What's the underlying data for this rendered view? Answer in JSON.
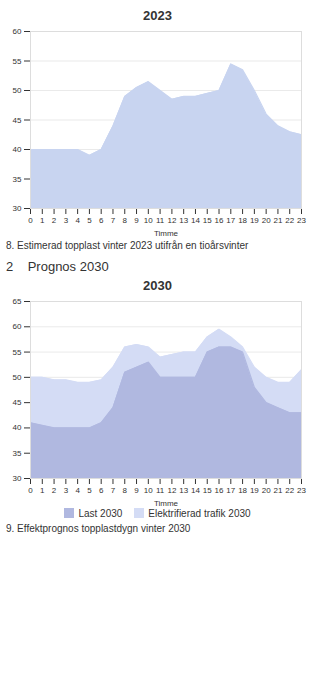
{
  "chart_data": [
    {
      "type": "area",
      "title": "2023",
      "x_label": "Timme",
      "x": [
        0,
        1,
        2,
        3,
        4,
        5,
        6,
        7,
        8,
        9,
        10,
        11,
        12,
        13,
        14,
        15,
        16,
        17,
        18,
        19,
        20,
        21,
        22,
        23
      ],
      "series": [
        {
          "name": null,
          "color": "#c8d4f0",
          "values": [
            40,
            40,
            40,
            40,
            40,
            39,
            40,
            44,
            49,
            50.5,
            51.5,
            50,
            48.5,
            49,
            49,
            49.5,
            50,
            54.5,
            53.5,
            50,
            46,
            44,
            43,
            42.5
          ]
        }
      ],
      "xlim": [
        0,
        23
      ],
      "xticks": [
        0,
        1,
        2,
        3,
        4,
        5,
        6,
        7,
        8,
        9,
        10,
        11,
        12,
        13,
        14,
        15,
        16,
        17,
        18,
        19,
        20,
        21,
        22,
        23
      ],
      "ylim": [
        30,
        60
      ],
      "yticks": [
        30,
        35,
        40,
        45,
        50,
        55,
        60
      ],
      "grid": true,
      "caption": "8. Estimerad topplast vinter 2023 utifrån en tioårsvinter"
    },
    {
      "type": "area",
      "title": "2030",
      "x_label": "Timme",
      "annotations": [
        "2    Prognos 2030"
      ],
      "x": [
        0,
        1,
        2,
        3,
        4,
        5,
        6,
        7,
        8,
        9,
        10,
        11,
        12,
        13,
        14,
        15,
        16,
        17,
        18,
        19,
        20,
        21,
        22,
        23
      ],
      "series": [
        {
          "name": "Last 2030",
          "color": "#b0b8e0",
          "values": [
            41,
            40.5,
            40,
            40,
            40,
            40,
            41,
            44,
            51,
            52,
            53,
            50,
            50,
            50,
            50,
            55,
            56,
            56,
            55,
            48,
            45,
            44,
            43,
            43
          ]
        },
        {
          "name": "Elektrifierad trafik 2030",
          "color": "#d4dcf5",
          "values": [
            50,
            50,
            49.5,
            49.5,
            49,
            49,
            49.5,
            52,
            56,
            56.5,
            56,
            54,
            54.5,
            55,
            55,
            58,
            59.5,
            58,
            56,
            52,
            50,
            49,
            49,
            51.5
          ]
        }
      ],
      "stacked": false,
      "xlim": [
        0,
        23
      ],
      "xticks": [
        0,
        1,
        2,
        3,
        4,
        5,
        6,
        7,
        8,
        9,
        10,
        11,
        12,
        13,
        14,
        15,
        16,
        17,
        18,
        19,
        20,
        21,
        22,
        23
      ],
      "ylim": [
        30,
        65
      ],
      "yticks": [
        30,
        35,
        40,
        45,
        50,
        55,
        60,
        65
      ],
      "grid": true,
      "legend": "bottom",
      "caption": "9. Effektprognos topplastdygn vinter 2030"
    }
  ]
}
